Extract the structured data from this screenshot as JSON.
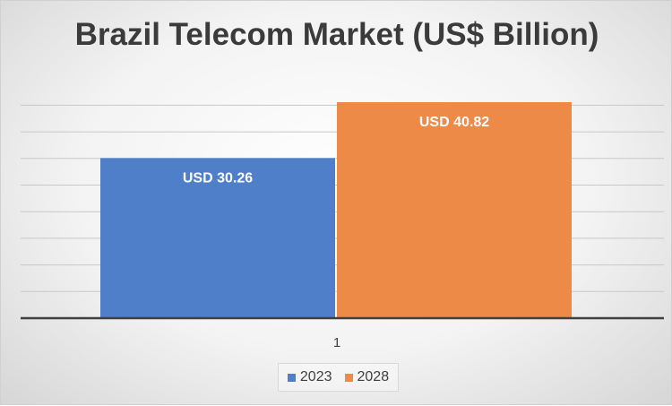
{
  "chart_data": {
    "type": "bar",
    "title": "Brazil Telecom Market (US$ Billion)",
    "categories": [
      "1"
    ],
    "series": [
      {
        "name": "2023",
        "values": [
          30.26
        ],
        "label": "USD 30.26",
        "color": "#4f7fc9"
      },
      {
        "name": "2028",
        "values": [
          40.82
        ],
        "label": "USD 40.82",
        "color": "#ed8a48"
      }
    ],
    "ylim": [
      0,
      40.82
    ],
    "grid": true,
    "legend_position": "bottom"
  }
}
